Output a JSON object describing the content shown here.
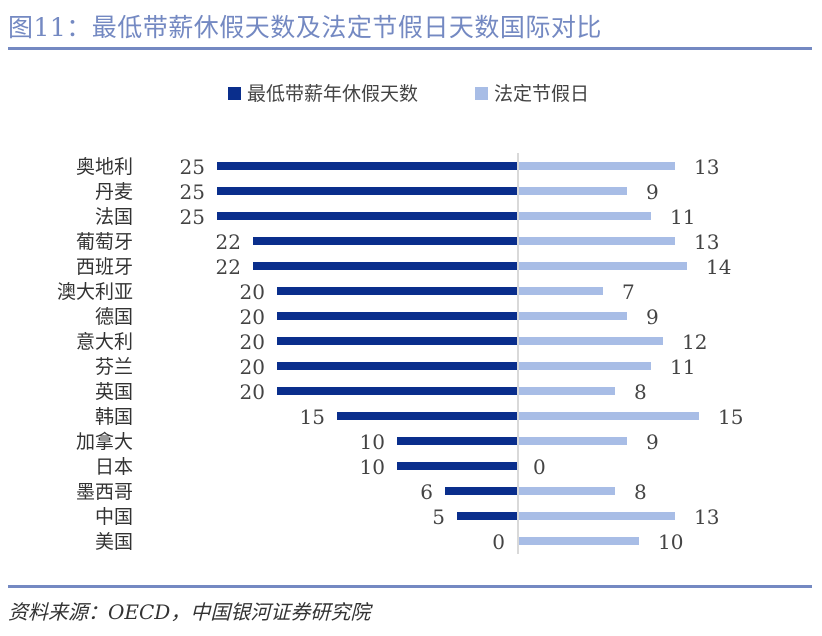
{
  "title": "图11：最低带薪休假天数及法定节假日天数国际对比",
  "source": "资料来源：OECD，中国银河证券研究院",
  "colors": {
    "left_series": "#0a2e8c",
    "right_series": "#a8bde6",
    "title": "#7489c2",
    "axis": "#d9d9d9"
  },
  "chart_data": {
    "type": "bar",
    "orientation": "horizontal-butterfly",
    "categories": [
      "奥地利",
      "丹麦",
      "法国",
      "葡萄牙",
      "西班牙",
      "澳大利亚",
      "德国",
      "意大利",
      "芬兰",
      "英国",
      "韩国",
      "加拿大",
      "日本",
      "墨西哥",
      "中国",
      "美国"
    ],
    "series": [
      {
        "name": "最低带薪年休假天数",
        "values": [
          25,
          25,
          25,
          22,
          22,
          20,
          20,
          20,
          20,
          20,
          15,
          10,
          10,
          6,
          5,
          0
        ]
      },
      {
        "name": "法定节假日",
        "values": [
          13,
          9,
          11,
          13,
          14,
          7,
          9,
          12,
          11,
          8,
          15,
          9,
          0,
          8,
          13,
          10
        ]
      }
    ],
    "legend": "top-center",
    "data_labels": true,
    "grid": false
  }
}
